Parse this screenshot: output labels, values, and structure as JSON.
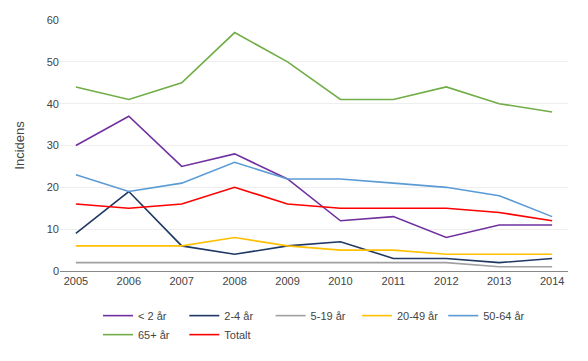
{
  "chart_data": {
    "type": "line",
    "y_label": "Incidens",
    "x": [
      2005,
      2006,
      2007,
      2008,
      2009,
      2010,
      2011,
      2012,
      2013,
      2014
    ],
    "series": [
      {
        "name": "< 2 år",
        "color": "#7030A0",
        "values": [
          30,
          37,
          25,
          28,
          22,
          12,
          13,
          8,
          11,
          11
        ]
      },
      {
        "name": "2-4 år",
        "color": "#1F3864",
        "values": [
          9,
          19,
          6,
          4,
          6,
          7,
          3,
          3,
          2,
          3
        ]
      },
      {
        "name": "5-19 år",
        "color": "#A0A0A0",
        "values": [
          2,
          2,
          2,
          2,
          2,
          2,
          2,
          2,
          1,
          1
        ]
      },
      {
        "name": "20-49 år",
        "color": "#FFC000",
        "values": [
          6,
          6,
          6,
          8,
          6,
          5,
          5,
          4,
          4,
          4
        ]
      },
      {
        "name": "50-64 år",
        "color": "#5B9BD5",
        "values": [
          23,
          19,
          21,
          26,
          22,
          22,
          21,
          20,
          18,
          13
        ]
      },
      {
        "name": "65+ år",
        "color": "#70AD47",
        "values": [
          44,
          41,
          45,
          57,
          50,
          41,
          41,
          44,
          40,
          38
        ]
      },
      {
        "name": "Totalt",
        "color": "#FF0000",
        "values": [
          16,
          15,
          16,
          20,
          16,
          15,
          15,
          15,
          14,
          12
        ]
      }
    ],
    "xlim": [
      2004.7,
      2014.3
    ],
    "xticks": [
      2005,
      2006,
      2007,
      2008,
      2009,
      2010,
      2011,
      2012,
      2013,
      2014
    ],
    "ylim": [
      0,
      60
    ],
    "yticks": [
      0,
      10,
      20,
      30,
      40,
      50,
      60
    ],
    "grid": true,
    "legend": "bottom"
  }
}
